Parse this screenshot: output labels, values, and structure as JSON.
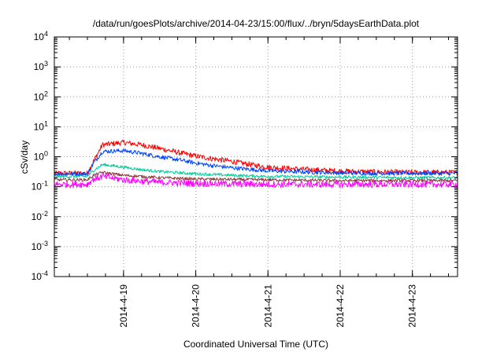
{
  "chart_data": {
    "type": "line",
    "title": "/data/run/goesPlots/archive/2014-04-23/15:00/flux/../bryn/5daysEarthData.plot",
    "xlabel": "Coordinated Universal Time (UTC)",
    "ylabel": "cSv/day",
    "y_scale": "log",
    "ylim_exponents": [
      -4,
      4
    ],
    "y_tick_base": "10",
    "y_tick_exponents": [
      "-4",
      "-3",
      "-2",
      "-1",
      "0",
      "1",
      "2",
      "3",
      "4"
    ],
    "xlim": [
      "2014-04-18 01:00",
      "2014-04-23 15:00"
    ],
    "x_tick_labels": [
      "2014-4-19",
      "2014-4-20",
      "2014-4-21",
      "2014-4-22",
      "2014-4-23"
    ],
    "grid": true,
    "legend": false,
    "series": [
      {
        "color": "#ff0000",
        "x": [
          "2014-04-18 01:00",
          "2014-04-18 12:00",
          "2014-04-18 14:00",
          "2014-04-18 17:00",
          "2014-04-19 00:00",
          "2014-04-19 06:00",
          "2014-04-19 12:00",
          "2014-04-19 18:00",
          "2014-04-20 00:00",
          "2014-04-20 06:00",
          "2014-04-20 12:00",
          "2014-04-20 18:00",
          "2014-04-21 00:00",
          "2014-04-21 12:00",
          "2014-04-22 00:00",
          "2014-04-22 12:00",
          "2014-04-23 00:00",
          "2014-04-23 15:00"
        ],
        "y": [
          0.28,
          0.28,
          0.7,
          2.5,
          3.0,
          2.5,
          1.9,
          1.4,
          1.05,
          0.85,
          0.7,
          0.55,
          0.45,
          0.38,
          0.33,
          0.31,
          0.3,
          0.3
        ]
      },
      {
        "color": "#0044ff",
        "x": [
          "2014-04-18 01:00",
          "2014-04-18 12:00",
          "2014-04-18 14:00",
          "2014-04-18 17:00",
          "2014-04-19 00:00",
          "2014-04-19 06:00",
          "2014-04-19 12:00",
          "2014-04-19 18:00",
          "2014-04-20 00:00",
          "2014-04-20 06:00",
          "2014-04-20 12:00",
          "2014-04-20 18:00",
          "2014-04-21 00:00",
          "2014-04-21 12:00",
          "2014-04-22 00:00",
          "2014-04-22 12:00",
          "2014-04-23 00:00",
          "2014-04-23 15:00"
        ],
        "y": [
          0.27,
          0.27,
          0.6,
          1.5,
          1.6,
          1.3,
          1.0,
          0.8,
          0.62,
          0.5,
          0.43,
          0.38,
          0.34,
          0.31,
          0.29,
          0.28,
          0.28,
          0.28
        ]
      },
      {
        "color": "#00cc99",
        "x": [
          "2014-04-18 01:00",
          "2014-04-18 12:00",
          "2014-04-18 14:00",
          "2014-04-18 17:00",
          "2014-04-19 00:00",
          "2014-04-19 06:00",
          "2014-04-19 12:00",
          "2014-04-20 00:00",
          "2014-04-20 12:00",
          "2014-04-21 00:00",
          "2014-04-22 00:00",
          "2014-04-23 00:00",
          "2014-04-23 15:00"
        ],
        "y": [
          0.22,
          0.22,
          0.35,
          0.55,
          0.45,
          0.37,
          0.32,
          0.27,
          0.24,
          0.22,
          0.21,
          0.2,
          0.2
        ]
      },
      {
        "color": "#8b3a3a",
        "x": [
          "2014-04-18 01:00",
          "2014-04-18 12:00",
          "2014-04-18 14:00",
          "2014-04-18 17:00",
          "2014-04-19 00:00",
          "2014-04-19 12:00",
          "2014-04-20 00:00",
          "2014-04-21 00:00",
          "2014-04-22 00:00",
          "2014-04-23 00:00",
          "2014-04-23 15:00"
        ],
        "y": [
          0.17,
          0.17,
          0.24,
          0.3,
          0.24,
          0.2,
          0.18,
          0.17,
          0.16,
          0.16,
          0.16
        ]
      },
      {
        "color": "#ff00ff",
        "x": [
          "2014-04-18 01:00",
          "2014-04-18 12:00",
          "2014-04-18 14:00",
          "2014-04-18 17:00",
          "2014-04-19 00:00",
          "2014-04-19 12:00",
          "2014-04-20 00:00",
          "2014-04-21 00:00",
          "2014-04-22 00:00",
          "2014-04-23 00:00",
          "2014-04-23 15:00"
        ],
        "y": [
          0.12,
          0.12,
          0.18,
          0.22,
          0.17,
          0.14,
          0.13,
          0.12,
          0.12,
          0.12,
          0.12
        ]
      }
    ]
  }
}
